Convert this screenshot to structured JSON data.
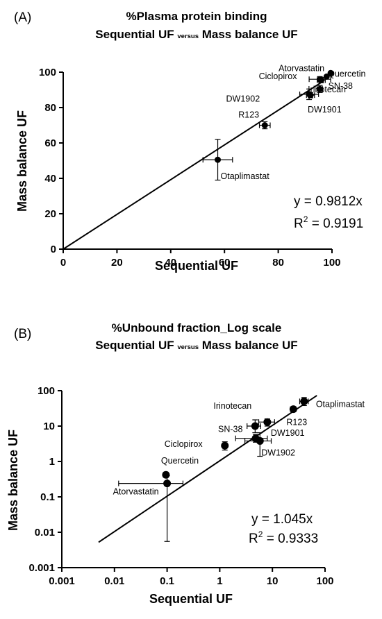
{
  "chart_data": [
    {
      "type": "scatter",
      "panel_label": "(A)",
      "title_line1": "%Plasma protein binding",
      "title_line2": {
        "left": "Sequential UF ",
        "small": "versus",
        "right": " Mass balance UF"
      },
      "xlabel": "Sequential UF",
      "ylabel": "Mass balance UF",
      "xlim": [
        0,
        100
      ],
      "ylim": [
        0,
        100
      ],
      "xticks": [
        "0",
        "20",
        "40",
        "60",
        "80",
        "100"
      ],
      "yticks": [
        "0",
        "20",
        "40",
        "60",
        "80",
        "100"
      ],
      "scale": "linear",
      "grid": false,
      "fit": {
        "slope": 0.9812,
        "x_from": 0,
        "x_to": 96
      },
      "equation": {
        "line1": "y = 0.9812x",
        "r2_left": "R",
        "r2_sup": "2",
        "r2_right": " = 0.9191"
      },
      "points": [
        {
          "label": "Atorvastatin",
          "x": 99.5,
          "y": 99.5,
          "xerr": 0,
          "yerr": 0
        },
        {
          "label": "Quercetin",
          "x": 98.0,
          "y": 97.5,
          "xerr": 0,
          "yerr": 0
        },
        {
          "label": "Ciclopirox",
          "x": 95.5,
          "y": 96.0,
          "xerr": 4.0,
          "yerr": 1.5
        },
        {
          "label": "DW1902",
          "x": 96.0,
          "y": 95.5,
          "xerr": 1.5,
          "yerr": 1.5
        },
        {
          "label": "SN-38",
          "x": 95.5,
          "y": 90.5,
          "xerr": 1.0,
          "yerr": 2.0
        },
        {
          "label": "Irinotecan",
          "x": 91.5,
          "y": 87.5,
          "xerr": 3.5,
          "yerr": 3.0
        },
        {
          "label": "DW1901",
          "x": 92.0,
          "y": 87.0,
          "xerr": 1.5,
          "yerr": 1.5
        },
        {
          "label": "R123",
          "x": 75.0,
          "y": 70.0,
          "xerr": 2.0,
          "yerr": 2.0
        },
        {
          "label": "Otaplimastat",
          "x": 57.5,
          "y": 50.5,
          "xerr": 5.5,
          "yerr": 11.5
        }
      ]
    },
    {
      "type": "scatter",
      "panel_label": "(B)",
      "title_line1": "%Unbound fraction_Log scale",
      "title_line2": {
        "left": "Sequential UF ",
        "small": "versus",
        "right": " Mass balance UF"
      },
      "xlabel": "Sequential UF",
      "ylabel": "Mass balance UF",
      "xlim": [
        0.001,
        100
      ],
      "ylim": [
        0.001,
        100
      ],
      "xticks": [
        "0.001",
        "0.01",
        "0.1",
        "1",
        "10",
        "100"
      ],
      "yticks": [
        "0.001",
        "0.01",
        "0.1",
        "1",
        "10",
        "100"
      ],
      "scale": "log",
      "grid": false,
      "fit": {
        "slope": 1.045,
        "x_from": 0.005,
        "x_to": 70
      },
      "equation": {
        "line1": "y = 1.045x",
        "r2_left": "R",
        "r2_sup": "2",
        "r2_right": " = 0.9333"
      },
      "points": [
        {
          "label": "Otaplimastat",
          "x": 40,
          "y": 50,
          "xlo": 33,
          "xhi": 48,
          "ylo": 38,
          "yhi": 64
        },
        {
          "label": "R123",
          "x": 25,
          "y": 30,
          "xlo": 22,
          "xhi": 28,
          "ylo": 26,
          "yhi": 34
        },
        {
          "label": "DW1901",
          "x": 8.0,
          "y": 13,
          "xlo": 5.5,
          "xhi": 11,
          "ylo": 10,
          "yhi": 16
        },
        {
          "label": "Irinotecan",
          "x": 4.7,
          "y": 10,
          "xlo": 3.3,
          "xhi": 6.0,
          "ylo": 6.5,
          "yhi": 15
        },
        {
          "label": "SN-38",
          "x": 4.8,
          "y": 4.5,
          "xlo": 2.0,
          "xhi": 8.0,
          "ylo": 3.5,
          "yhi": 5.8
        },
        {
          "label": "DW1902",
          "x": 5.8,
          "y": 3.8,
          "xlo": 3.0,
          "xhi": 9.5,
          "ylo": 1.4,
          "yhi": 6.5
        },
        {
          "label": "Ciclopirox",
          "x": 1.25,
          "y": 2.8,
          "xlo": 1.15,
          "xhi": 1.35,
          "ylo": 2.1,
          "yhi": 3.6
        },
        {
          "label": "Quercetin",
          "x": 0.095,
          "y": 0.42,
          "xlo": 0.085,
          "xhi": 0.105,
          "ylo": 0.36,
          "yhi": 0.48
        },
        {
          "label": "Atorvastatin",
          "x": 0.1,
          "y": 0.24,
          "xlo": 0.012,
          "xhi": 0.2,
          "ylo": 0.0055,
          "yhi": 0.4
        }
      ]
    }
  ]
}
